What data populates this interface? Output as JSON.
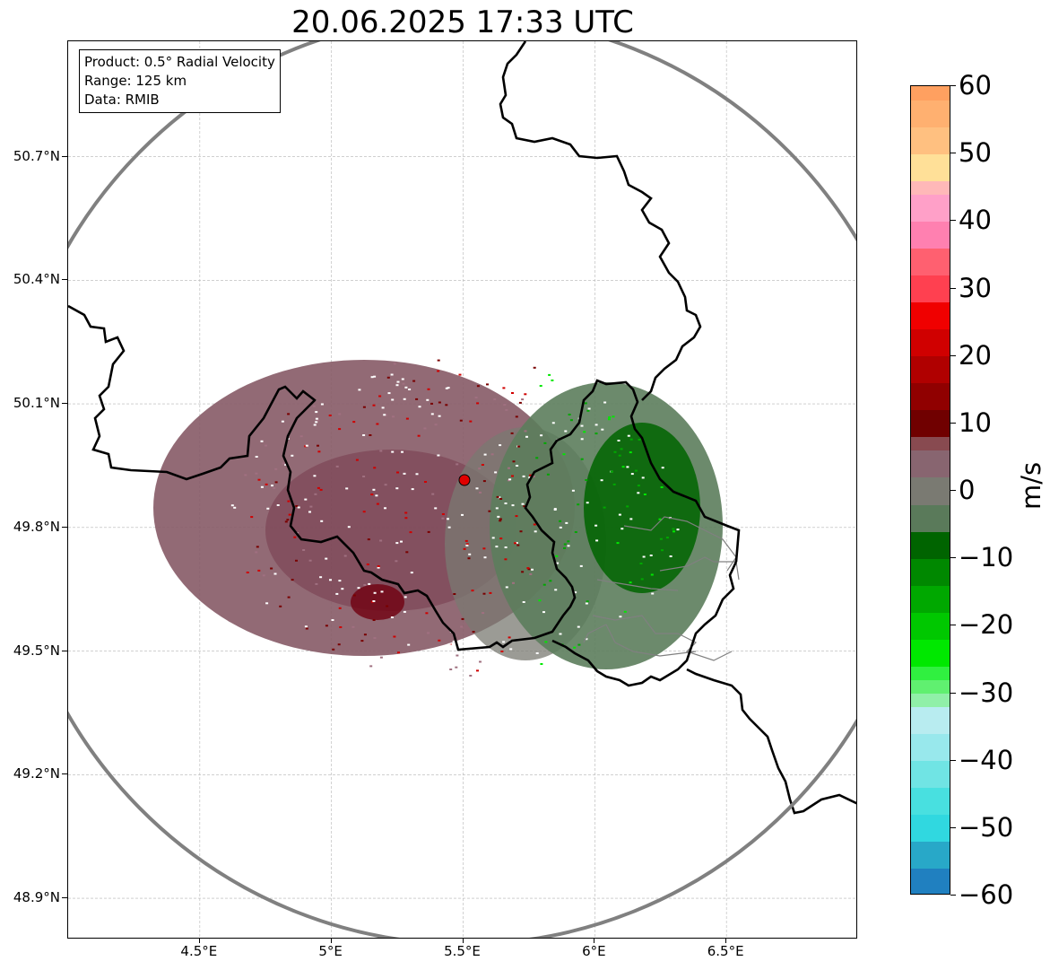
{
  "title": "20.06.2025 17:33 UTC",
  "info_box": {
    "product": "Product: 0.5° Radial Velocity",
    "range": "Range: 125 km",
    "source": "Data: RMIB"
  },
  "map": {
    "lon_min": 4.0,
    "lon_max": 7.0,
    "lat_min": 48.8,
    "lat_max": 50.98,
    "radar_site": {
      "lon": 5.505,
      "lat": 49.915
    },
    "range_km": 125,
    "lat_ticks": [
      {
        "value": 50.7,
        "label": "50.7°N"
      },
      {
        "value": 50.4,
        "label": "50.4°N"
      },
      {
        "value": 50.1,
        "label": "50.1°N"
      },
      {
        "value": 49.8,
        "label": "49.8°N"
      },
      {
        "value": 49.5,
        "label": "49.5°N"
      },
      {
        "value": 49.2,
        "label": "49.2°N"
      },
      {
        "value": 48.9,
        "label": "48.9°N"
      }
    ],
    "lon_ticks": [
      {
        "value": 4.5,
        "label": "4.5°E"
      },
      {
        "value": 5.0,
        "label": "5°E"
      },
      {
        "value": 5.5,
        "label": "5.5°E"
      },
      {
        "value": 6.0,
        "label": "6°E"
      },
      {
        "value": 6.5,
        "label": "6.5°E"
      }
    ],
    "colors": {
      "grid": "#b4b4b4",
      "range_ring": "#808080",
      "border": "#000000",
      "region_border": "#808080",
      "radar_marker": "#e00000",
      "echo_inbound_dark": "#006400",
      "echo_near_zero": "#7a7a7a",
      "echo_outbound_dark": "#7a0000"
    }
  },
  "colorbar": {
    "unit": "m/s",
    "min": -60,
    "max": 60,
    "ticks": [
      {
        "value": 60,
        "label": "60"
      },
      {
        "value": 50,
        "label": "50"
      },
      {
        "value": 40,
        "label": "40"
      },
      {
        "value": 30,
        "label": "30"
      },
      {
        "value": 20,
        "label": "20"
      },
      {
        "value": 10,
        "label": "10"
      },
      {
        "value": 0,
        "label": "0"
      },
      {
        "value": -10,
        "label": "−10"
      },
      {
        "value": -20,
        "label": "−20"
      },
      {
        "value": -30,
        "label": "−30"
      },
      {
        "value": -40,
        "label": "−40"
      },
      {
        "value": -50,
        "label": "−50"
      },
      {
        "value": -60,
        "label": "−60"
      }
    ],
    "segments": [
      {
        "from": -60,
        "to": -56,
        "color": "#2080c0"
      },
      {
        "from": -56,
        "to": -52,
        "color": "#28a8c8"
      },
      {
        "from": -52,
        "to": -48,
        "color": "#30d8e0"
      },
      {
        "from": -48,
        "to": -44,
        "color": "#48e0e0"
      },
      {
        "from": -44,
        "to": -40,
        "color": "#70e4e4"
      },
      {
        "from": -40,
        "to": -36,
        "color": "#98e8ec"
      },
      {
        "from": -36,
        "to": -32,
        "color": "#b8ecf0"
      },
      {
        "from": -32,
        "to": -30,
        "color": "#90f0a8"
      },
      {
        "from": -30,
        "to": -28,
        "color": "#60f070"
      },
      {
        "from": -28,
        "to": -26,
        "color": "#30f040"
      },
      {
        "from": -26,
        "to": -22,
        "color": "#00e800"
      },
      {
        "from": -22,
        "to": -18,
        "color": "#00c800"
      },
      {
        "from": -18,
        "to": -14,
        "color": "#00a800"
      },
      {
        "from": -14,
        "to": -10,
        "color": "#008800"
      },
      {
        "from": -10,
        "to": -6,
        "color": "#006400"
      },
      {
        "from": -6,
        "to": -2,
        "color": "#5a7a5a"
      },
      {
        "from": -2,
        "to": 2,
        "color": "#7a7a72"
      },
      {
        "from": 2,
        "to": 6,
        "color": "#886570"
      },
      {
        "from": 6,
        "to": 8,
        "color": "#884a50"
      },
      {
        "from": 8,
        "to": 12,
        "color": "#700000"
      },
      {
        "from": 12,
        "to": 16,
        "color": "#900000"
      },
      {
        "from": 16,
        "to": 20,
        "color": "#b00000"
      },
      {
        "from": 20,
        "to": 24,
        "color": "#d00000"
      },
      {
        "from": 24,
        "to": 28,
        "color": "#f00000"
      },
      {
        "from": 28,
        "to": 32,
        "color": "#ff4050"
      },
      {
        "from": 32,
        "to": 36,
        "color": "#ff6070"
      },
      {
        "from": 36,
        "to": 40,
        "color": "#ff80b0"
      },
      {
        "from": 40,
        "to": 44,
        "color": "#ffa0c8"
      },
      {
        "from": 44,
        "to": 46,
        "color": "#ffb8b8"
      },
      {
        "from": 46,
        "to": 50,
        "color": "#ffe098"
      },
      {
        "from": 50,
        "to": 54,
        "color": "#ffc080"
      },
      {
        "from": 54,
        "to": 58,
        "color": "#ffb070"
      },
      {
        "from": 58,
        "to": 60,
        "color": "#ffa060"
      }
    ]
  }
}
